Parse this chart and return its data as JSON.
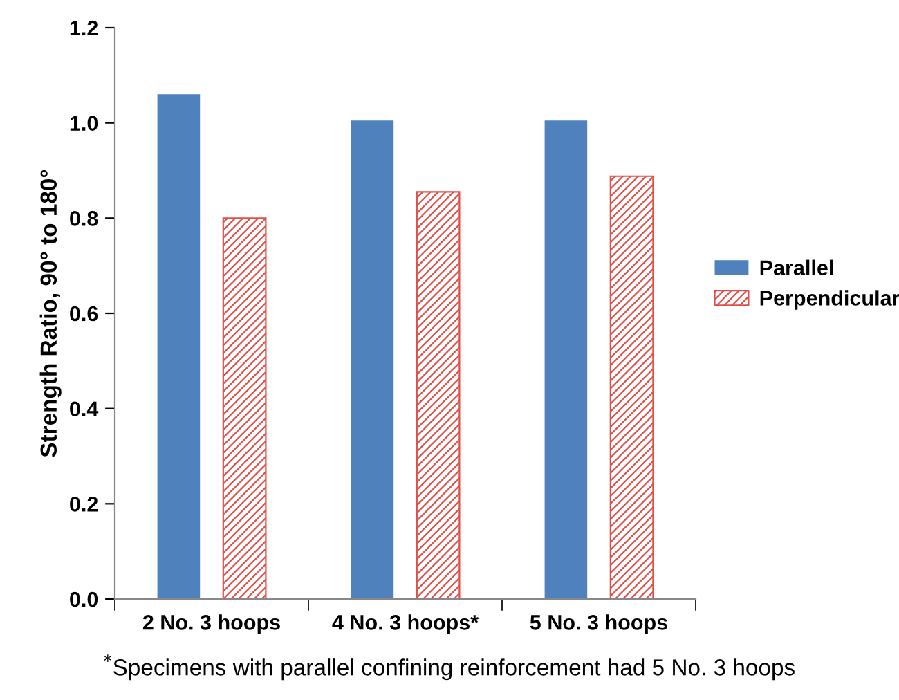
{
  "chart_data": {
    "type": "bar",
    "ylabel": "Strength Ratio, 90° to 180°",
    "categories": [
      "2 No. 3 hoops",
      "4 No. 3 hoops*",
      "5 No. 3 hoops"
    ],
    "series": [
      {
        "name": "Parallel",
        "color": "#4f81bd",
        "values": [
          1.06,
          1.005,
          1.005
        ]
      },
      {
        "name": "Perpendicular",
        "color": "#e0504a",
        "values": [
          0.8,
          0.855,
          0.888
        ]
      }
    ],
    "ylim": [
      0.0,
      1.2
    ],
    "yticks": [
      {
        "value": 0,
        "label": "0.0"
      },
      {
        "value": 0.2,
        "label": "0.2"
      },
      {
        "value": 0.4,
        "label": "0.4"
      },
      {
        "value": 0.6,
        "label": "0.6"
      },
      {
        "value": 0.8,
        "label": "0.8"
      },
      {
        "value": 1.0,
        "label": "1.0"
      },
      {
        "value": 1.2,
        "label": "1.2"
      }
    ],
    "grid": false,
    "legend": "right",
    "annotations": [
      "$^{*}$Specimens with parallel confining reinforcement had 5 No. 3 hoops"
    ]
  }
}
